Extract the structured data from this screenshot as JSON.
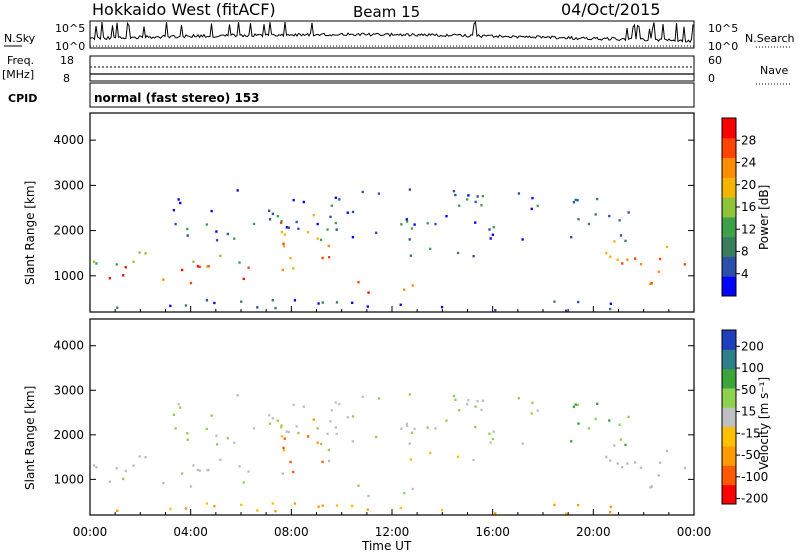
{
  "header": {
    "radar": "Hokkaido West (fitACF)",
    "beam": "Beam 15",
    "date": "04/Oct/2015"
  },
  "panels": {
    "nsky": {
      "label": "N.Sky",
      "left_ticks": [
        "10^5",
        "10^0"
      ],
      "right_ticks": [
        "10^5",
        "10^0"
      ],
      "right_label": "N.Search"
    },
    "freq": {
      "label": "Freq.",
      "unit": "[MHz]",
      "left_ticks": [
        "18",
        "8"
      ],
      "right_ticks": [
        "60",
        "0"
      ],
      "right_label": "Nave"
    },
    "cpid": {
      "label": "CPID",
      "text": "normal (fast stereo) 153"
    }
  },
  "colors": {
    "power": [
      "#0000ff",
      "#2b4faa",
      "#3a7d5c",
      "#3fa04a",
      "#8ec33a",
      "#f4b400",
      "#ff8c00",
      "#ff4500",
      "#ff0000"
    ],
    "velocity": [
      "#ff0000",
      "#ff5a00",
      "#ff9a00",
      "#ffc000",
      "#c0c0c0",
      "#8fd14f",
      "#3da33d",
      "#2f7f8a",
      "#1f3fbf"
    ],
    "ground_scatter": "#bdbdbd"
  },
  "chart_data": [
    {
      "type": "heatmap",
      "name": "power",
      "xlabel": "Time UT",
      "ylabel": "Slant Range [km]",
      "xticks": [
        "00:00",
        "04:00",
        "08:00",
        "12:00",
        "16:00",
        "20:00",
        "00:00"
      ],
      "xlim_hours": [
        0,
        24
      ],
      "ylim": [
        200,
        4600
      ],
      "yticks": [
        1000,
        2000,
        3000,
        4000
      ],
      "colorbar_label": "Power [dB]",
      "colorbar_ticks": [
        4,
        8,
        12,
        16,
        20,
        24,
        28
      ],
      "colorbar_range": [
        0,
        32
      ]
    },
    {
      "type": "heatmap",
      "name": "velocity",
      "xlabel": "Time UT",
      "ylabel": "Slant Range [km]",
      "xticks": [
        "00:00",
        "04:00",
        "08:00",
        "12:00",
        "16:00",
        "20:00",
        "00:00"
      ],
      "xlim_hours": [
        0,
        24
      ],
      "ylim": [
        200,
        4600
      ],
      "yticks": [
        1000,
        2000,
        3000,
        4000
      ],
      "colorbar_label": "Velocity [m s⁻¹]",
      "colorbar_ticks": [
        "200",
        "100",
        "50",
        "15",
        "-15",
        "-50",
        "-100",
        "-200"
      ]
    }
  ]
}
